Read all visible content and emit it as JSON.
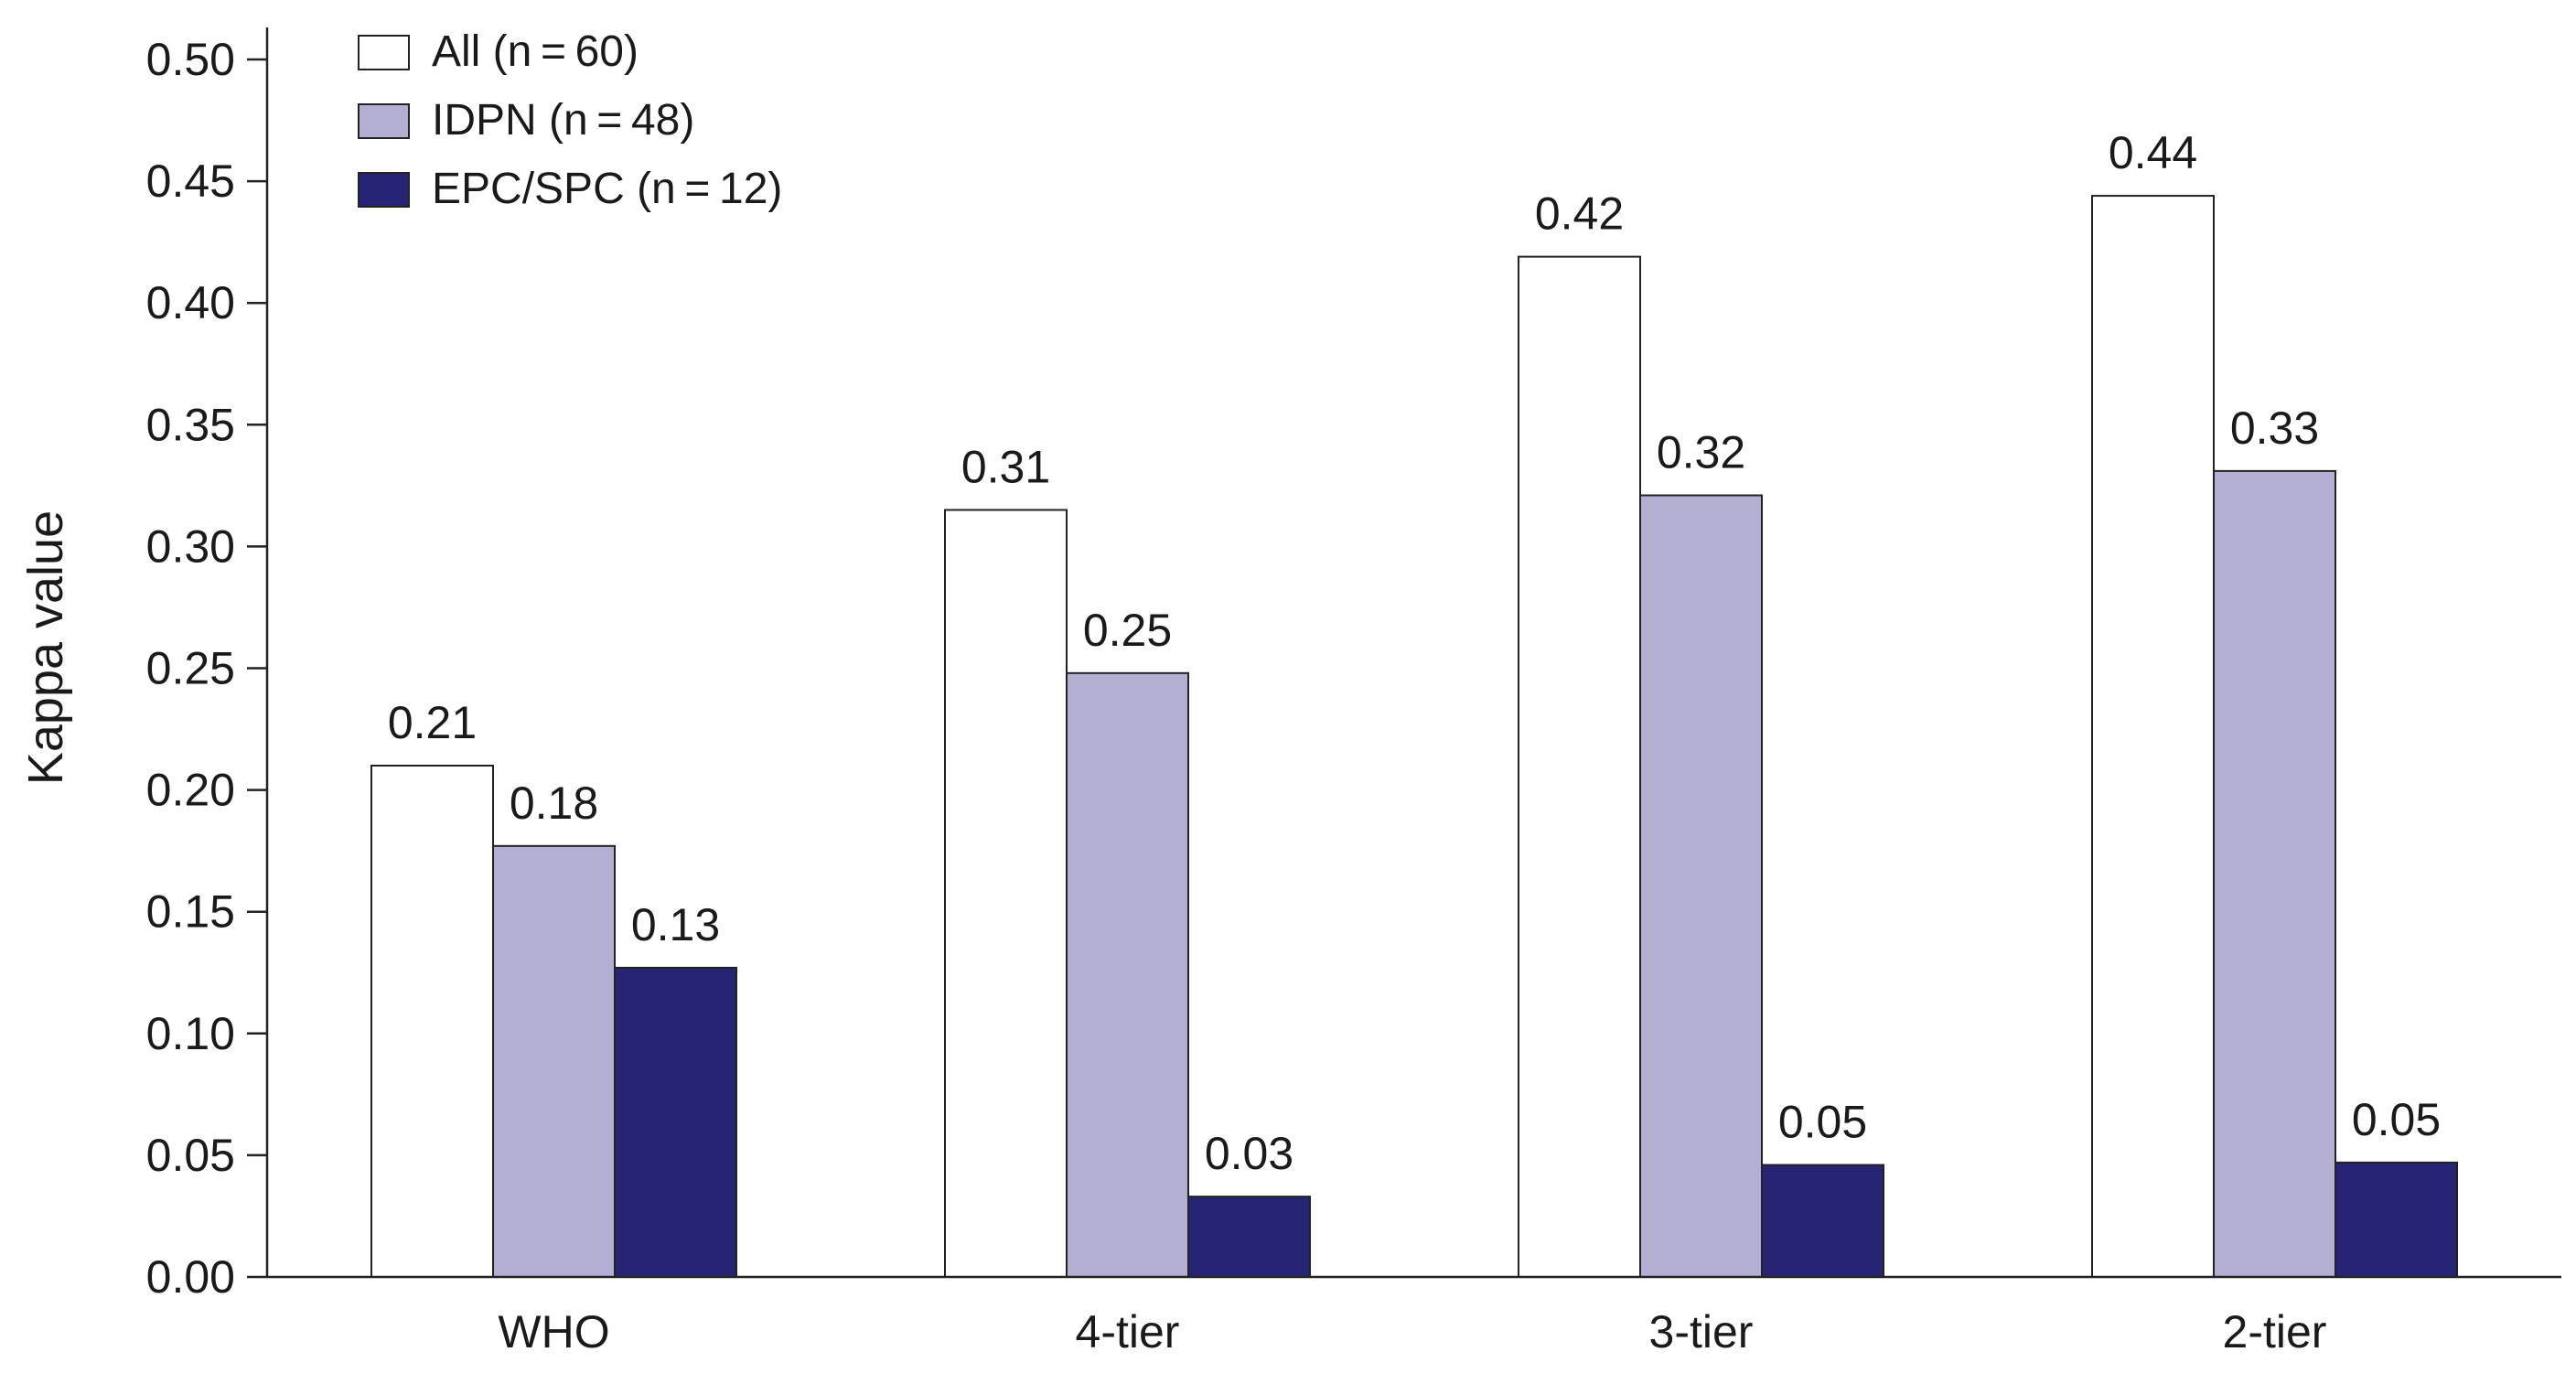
{
  "chart_data": {
    "type": "bar",
    "ylabel": "Kappa value",
    "ylim": [
      0,
      0.5
    ],
    "yticks": [
      "0.00",
      "0.05",
      "0.10",
      "0.15",
      "0.20",
      "0.25",
      "0.30",
      "0.35",
      "0.40",
      "0.45",
      "0.50"
    ],
    "categories": [
      "WHO",
      "4-tier",
      "3-tier",
      "2-tier"
    ],
    "legend_position": "top-left",
    "series": [
      {
        "name": "All (n = 60)",
        "color": "#ffffff",
        "values": [
          0.21,
          0.315,
          0.419,
          0.444
        ],
        "labels": [
          "0.21",
          "0.31",
          "0.42",
          "0.44"
        ]
      },
      {
        "name": "IDPN (n = 48)",
        "color": "#b3afd3",
        "values": [
          0.177,
          0.248,
          0.321,
          0.331
        ],
        "labels": [
          "0.18",
          "0.25",
          "0.32",
          "0.33"
        ]
      },
      {
        "name": "EPC/SPC (n = 12)",
        "color": "#272476",
        "values": [
          0.127,
          0.033,
          0.046,
          0.047
        ],
        "labels": [
          "0.13",
          "0.03",
          "0.05",
          "0.05"
        ]
      }
    ]
  }
}
